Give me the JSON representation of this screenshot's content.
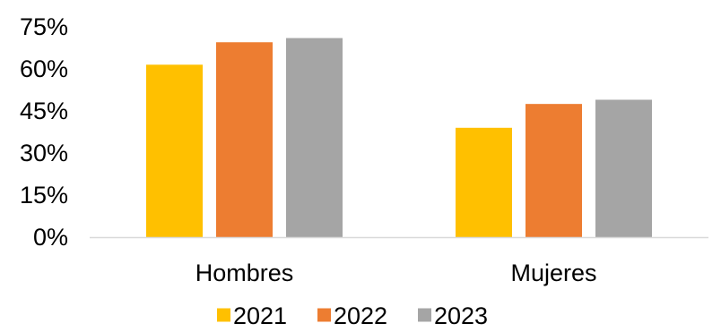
{
  "chart_data": {
    "type": "bar",
    "categories": [
      "Hombres",
      "Mujeres"
    ],
    "series": [
      {
        "name": "2021",
        "color": "#FFC000",
        "values": [
          61.5,
          39.0
        ]
      },
      {
        "name": "2022",
        "color": "#ED7D31",
        "values": [
          69.5,
          47.5
        ]
      },
      {
        "name": "2023",
        "color": "#A5A5A5",
        "values": [
          71.0,
          49.0
        ]
      }
    ],
    "ylim": [
      0,
      75
    ],
    "yticks": [
      0,
      15,
      30,
      45,
      60,
      75
    ],
    "ytick_labels": [
      "0%",
      "15%",
      "30%",
      "45%",
      "60%",
      "75%"
    ],
    "title": "",
    "xlabel": "",
    "ylabel": "",
    "grid": false,
    "legend_position": "bottom",
    "axis_color": "#D9D9D9"
  }
}
